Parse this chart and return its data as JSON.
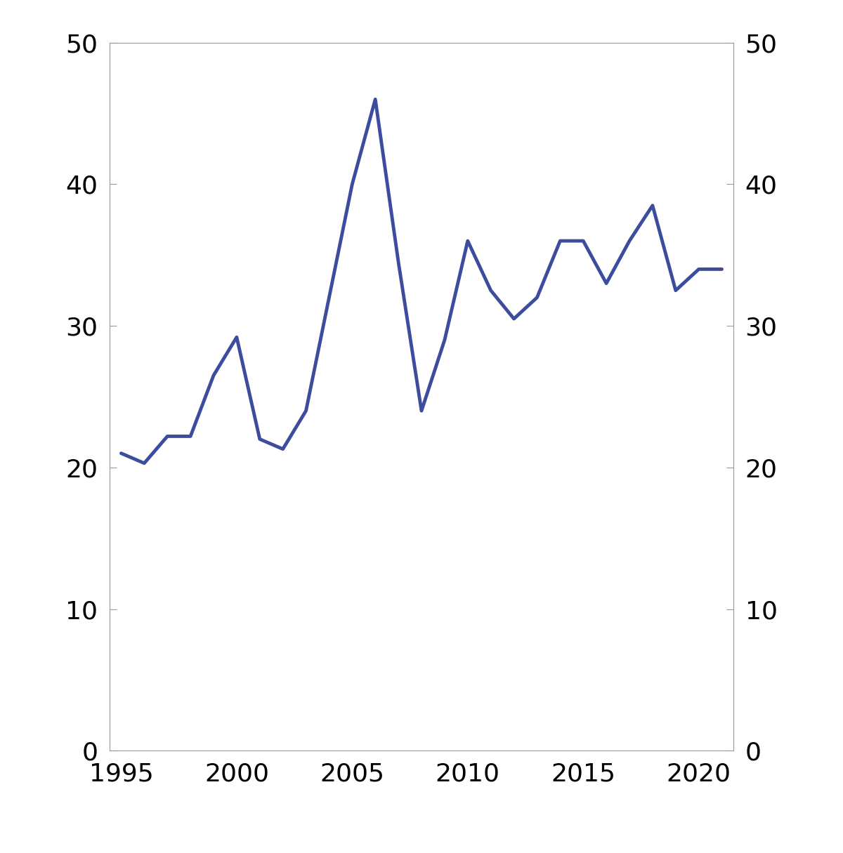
{
  "years": [
    1995,
    1996,
    1997,
    1998,
    1999,
    2000,
    2001,
    2002,
    2003,
    2004,
    2005,
    2006,
    2007,
    2008,
    2009,
    2010,
    2011,
    2012,
    2013,
    2014,
    2015,
    2016,
    2017,
    2018,
    2019,
    2020,
    2021
  ],
  "values": [
    21.0,
    20.3,
    22.2,
    22.2,
    26.5,
    29.2,
    22.0,
    21.3,
    24.0,
    32.0,
    40.0,
    46.0,
    34.5,
    24.0,
    29.0,
    36.0,
    32.5,
    30.5,
    32.0,
    36.0,
    36.0,
    33.0,
    36.0,
    38.5,
    32.5,
    34.0,
    34.0
  ],
  "line_color": "#3d4d9e",
  "line_width": 3.5,
  "ylim": [
    0,
    50
  ],
  "xlim_min": 1994.5,
  "xlim_max": 2021.5,
  "yticks": [
    0,
    10,
    20,
    30,
    40,
    50
  ],
  "xticks": [
    1995,
    2000,
    2005,
    2010,
    2015,
    2020
  ],
  "tick_fontsize": 26,
  "background_color": "#ffffff",
  "spine_color": "#999999"
}
